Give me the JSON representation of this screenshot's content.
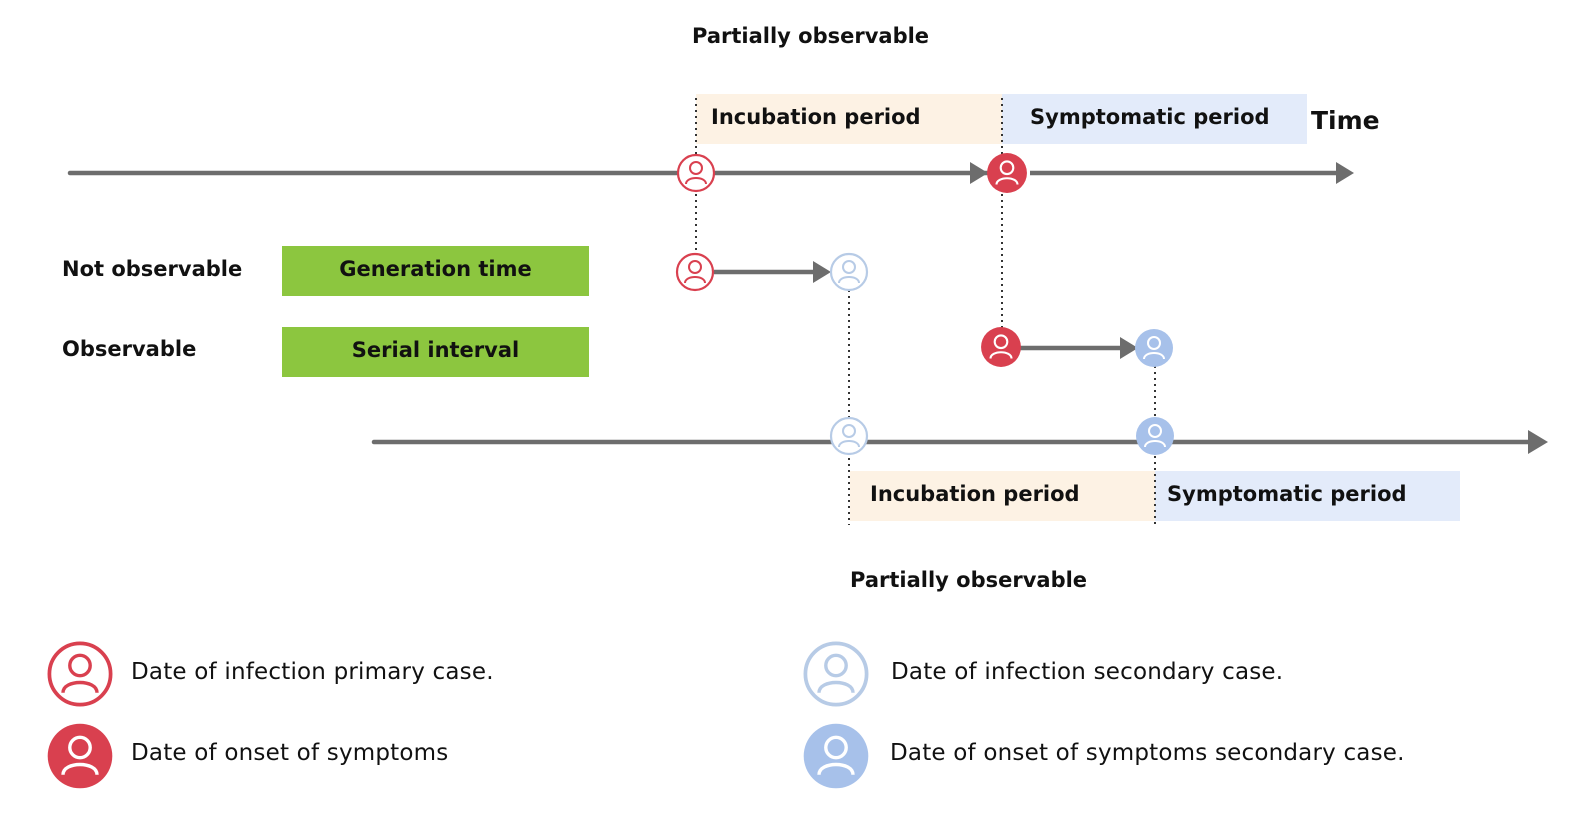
{
  "top": {
    "partially_observable": "Partially observable",
    "incubation": "Incubation period",
    "symptomatic": "Symptomatic period",
    "time": "Time"
  },
  "middle": {
    "not_observable": "Not observable",
    "generation_time": "Generation time",
    "observable": "Observable",
    "serial_interval": "Serial interval"
  },
  "bottom": {
    "incubation": "Incubation period",
    "symptomatic": "Symptomatic period",
    "partially_observable": "Partially observable"
  },
  "legend": {
    "infection_primary": "Date of infection primary case.",
    "onset_primary": "Date of onset of symptoms",
    "infection_secondary": "Date of infection secondary case.",
    "onset_secondary": "Date of onset of symptoms secondary case."
  },
  "colors": {
    "primary_red": "#d9404f",
    "secondary_blue": "#9ab8e8",
    "secondary_light": "#c5d6ea",
    "incubation_fill": "#fdf2e4",
    "symptomatic_fill": "#e3ebfa",
    "green_fill": "#8cc63f",
    "line_gray": "#6d6d6d"
  },
  "icons": {
    "infection_primary": "person-outline-red-icon",
    "onset_primary": "person-filled-red-icon",
    "infection_secondary": "person-outline-blue-icon",
    "onset_secondary": "person-filled-blue-icon"
  }
}
